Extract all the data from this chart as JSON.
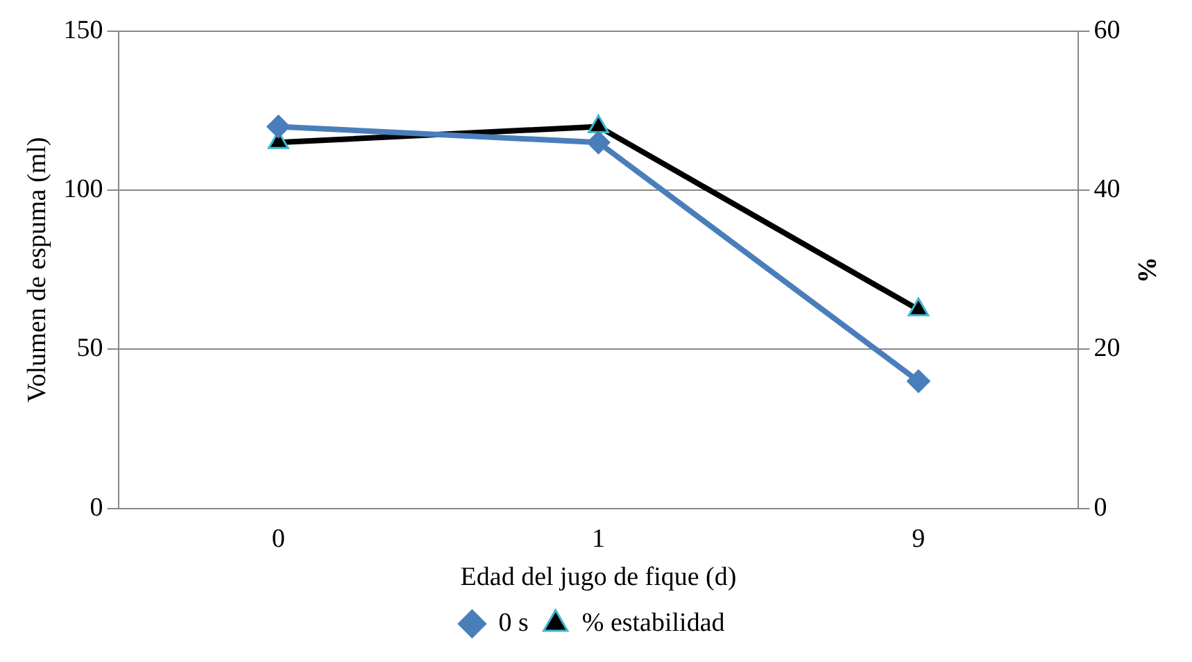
{
  "chart_data": {
    "type": "line",
    "xlabel": "Edad del jugo de fique (d)",
    "ylabel": "Volumen de espuma (ml)",
    "y2label": "%",
    "categories": [
      "0",
      "1",
      "9"
    ],
    "series": [
      {
        "name": "0 s",
        "color": "#4a7ebb",
        "values": [
          120,
          115,
          40
        ],
        "marker": "diamond"
      },
      {
        "name": "% estabilidad",
        "color": "#000000",
        "values": [
          46,
          48,
          25
        ],
        "axis": "y2",
        "marker": "triangle"
      }
    ],
    "ylim": [
      0,
      150
    ],
    "yticks": [
      0,
      50,
      100,
      150
    ],
    "y2lim": [
      0,
      60
    ],
    "y2ticks": [
      0,
      20,
      40,
      60
    ],
    "grid": "y",
    "legend": "bottom",
    "line_style": "solid"
  }
}
